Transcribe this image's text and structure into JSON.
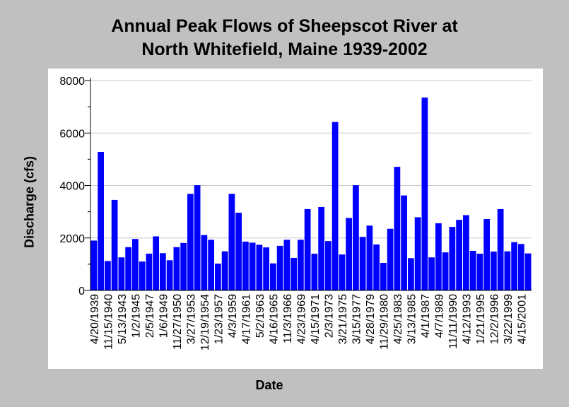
{
  "chart_data": {
    "type": "bar",
    "title_line1": "Annual Peak Flows of Sheepscot River at",
    "title_line2": "North Whitefield, Maine 1939-2002",
    "xlabel": "Date",
    "ylabel": "Discharge (cfs)",
    "ylim": [
      0,
      8000
    ],
    "yticks": [
      0,
      2000,
      4000,
      6000,
      8000
    ],
    "ytick_labels": [
      "0",
      "2000",
      "4000",
      "6000",
      "8000"
    ],
    "grid": true,
    "bar_color": "#0000ff",
    "x_tick_labels": [
      "4/20/1939",
      "11/15/1940",
      "5/13/1943",
      "1/2/1945",
      "2/5/1947",
      "1/6/1949",
      "11/27/1950",
      "3/27/1953",
      "12/19/1954",
      "1/23/1957",
      "4/3/1959",
      "4/17/1961",
      "5/2/1963",
      "4/16/1965",
      "11/3/1966",
      "4/23/1969",
      "4/15/1971",
      "2/3/1973",
      "3/21/1975",
      "3/15/1977",
      "4/28/1979",
      "11/29/1980",
      "4/25/1983",
      "3/13/1985",
      "4/1/1987",
      "4/7/1989",
      "11/11/1990",
      "4/12/1993",
      "1/21/1995",
      "12/2/1996",
      "3/22/1999",
      "4/15/2001"
    ],
    "values": [
      1900,
      5280,
      1120,
      3450,
      1260,
      1650,
      1960,
      1100,
      1400,
      2060,
      1420,
      1150,
      1650,
      1810,
      3680,
      4010,
      2110,
      1930,
      1020,
      1490,
      3680,
      2960,
      1860,
      1820,
      1740,
      1640,
      1030,
      1700,
      1930,
      1240,
      1930,
      3100,
      1400,
      3180,
      1880,
      6420,
      1370,
      2760,
      4010,
      2040,
      2470,
      1750,
      1050,
      2350,
      4710,
      3620,
      1230,
      2790,
      7350,
      1260,
      2560,
      1450,
      2420,
      2690,
      2870,
      1510,
      1400,
      2720,
      1480,
      3100,
      1490,
      1840,
      1770,
      1410
    ]
  }
}
